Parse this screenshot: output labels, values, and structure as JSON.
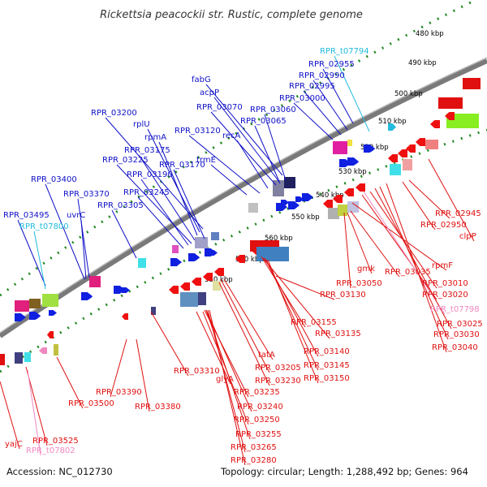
{
  "title": "Rickettsia peacockii str. Rustic, complete genome",
  "footer": {
    "accession": "Accession: NC_012730",
    "summary": "Topology: circular; Length: 1,288,492 bp; Genes: 964"
  },
  "colors": {
    "forward_label": "#1010c8",
    "reverse_label": "#e01010",
    "trna_forward": "#22bbdd",
    "trna_reverse": "#f088c0",
    "backbone": "#777777",
    "tick_dots": "#228822"
  },
  "kbp_ticks": [
    {
      "label": "480 kbp"
    },
    {
      "label": "490 kbp"
    },
    {
      "label": "500 kbp"
    },
    {
      "label": "510 kbp"
    },
    {
      "label": "520 kbp"
    },
    {
      "label": "530 kbp"
    },
    {
      "label": "540 kbp"
    },
    {
      "label": "550 kbp"
    },
    {
      "label": "560 kbp"
    },
    {
      "label": "570 kbp"
    },
    {
      "label": "580 kbp"
    }
  ],
  "forward_labels": [
    {
      "name": "RPR_t07794"
    },
    {
      "name": "RPR_02955"
    },
    {
      "name": "RPR_02990"
    },
    {
      "name": "RPR_02995"
    },
    {
      "name": "RPR_03000"
    },
    {
      "name": "fabG"
    },
    {
      "name": "acpP"
    },
    {
      "name": "RPR_03070"
    },
    {
      "name": "RPR_03060"
    },
    {
      "name": "RPR_03065"
    },
    {
      "name": "RPR_03200"
    },
    {
      "name": "rplU"
    },
    {
      "name": "rpmA"
    },
    {
      "name": "RPR_03120"
    },
    {
      "name": "recA"
    },
    {
      "name": "RPR_03175"
    },
    {
      "name": "RPR_03225"
    },
    {
      "name": "RPR_03170"
    },
    {
      "name": "trmE"
    },
    {
      "name": "RPR_03190"
    },
    {
      "name": "RPR_03400"
    },
    {
      "name": "RPR_03370"
    },
    {
      "name": "RPR_03245"
    },
    {
      "name": "RPR_03305"
    },
    {
      "name": "RPR_03495"
    },
    {
      "name": "uvrC"
    },
    {
      "name": "RPR_t07800"
    }
  ],
  "reverse_labels": [
    {
      "name": "RPR_02945"
    },
    {
      "name": "RPR_02950"
    },
    {
      "name": "clpP"
    },
    {
      "name": "rpmF"
    },
    {
      "name": "gmk"
    },
    {
      "name": "RPR_03035"
    },
    {
      "name": "RPR_03050"
    },
    {
      "name": "RPR_03010"
    },
    {
      "name": "RPR_03130"
    },
    {
      "name": "RPR_03020"
    },
    {
      "name": "RPR_t07798"
    },
    {
      "name": "RPR_03155"
    },
    {
      "name": "RPR_03025"
    },
    {
      "name": "RPR_03135"
    },
    {
      "name": "RPR_03030"
    },
    {
      "name": "RPR_03140"
    },
    {
      "name": "RPR_03040"
    },
    {
      "name": "tatA"
    },
    {
      "name": "RPR_03145"
    },
    {
      "name": "RPR_03205"
    },
    {
      "name": "RPR_03150"
    },
    {
      "name": "RPR_03230"
    },
    {
      "name": "RPR_03310"
    },
    {
      "name": "glyA"
    },
    {
      "name": "RPR_03235"
    },
    {
      "name": "RPR_03390"
    },
    {
      "name": "RPR_03380"
    },
    {
      "name": "RPR_03500"
    },
    {
      "name": "RPR_03240"
    },
    {
      "name": "RPR_03250"
    },
    {
      "name": "RPR_03255"
    },
    {
      "name": "yajC"
    },
    {
      "name": "RPR_03525"
    },
    {
      "name": "RPR_03265"
    },
    {
      "name": "RPR_t07802"
    },
    {
      "name": "RPR_03280"
    }
  ]
}
